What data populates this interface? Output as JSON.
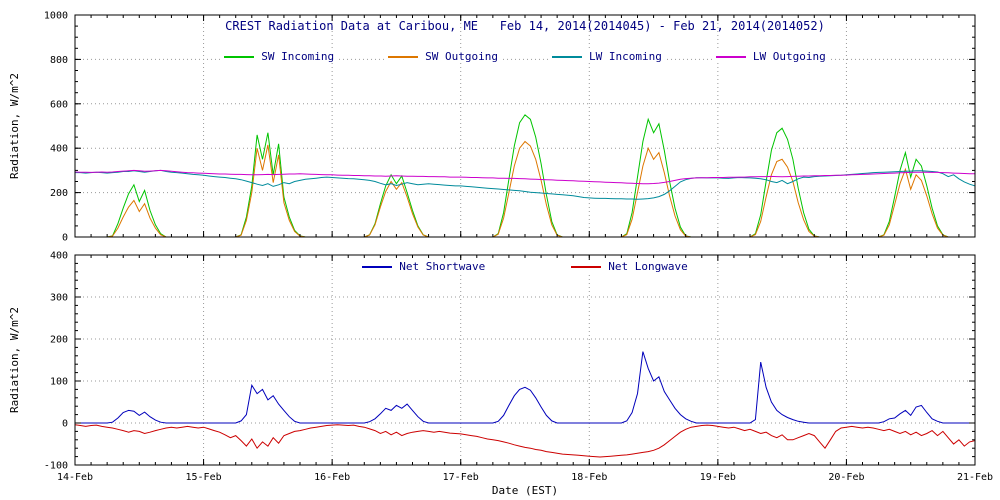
{
  "xlabel": "Date (EST)",
  "chart_data": [
    {
      "type": "line",
      "title": "CREST Radiation Data at Caribou, ME   Feb 14, 2014(2014045) - Feb 21, 2014(2014052)",
      "ylabel": "Radiation, W/m^2",
      "xlabel": "",
      "ylim": [
        0,
        1000
      ],
      "yticks": [
        0,
        200,
        400,
        600,
        800,
        1000
      ],
      "yminor_step": 50,
      "x_unit": "hours since 14-Feb 00:00 EST",
      "xlim_hours": [
        0,
        168
      ],
      "xticks_hours": [
        0,
        24,
        48,
        72,
        96,
        120,
        144,
        168
      ],
      "xtick_labels": [
        "14-Feb",
        "15-Feb",
        "16-Feb",
        "17-Feb",
        "18-Feb",
        "19-Feb",
        "20-Feb",
        "21-Feb"
      ],
      "xminor_hours": 3,
      "show_xtick_labels": false,
      "grid": "dotted",
      "legend_position": "top-inside",
      "series": [
        {
          "name": "SW Incoming",
          "color": "#00c400",
          "x_step_hours": 1,
          "values": [
            0,
            0,
            0,
            0,
            0,
            0,
            0,
            5,
            60,
            130,
            195,
            235,
            160,
            210,
            120,
            55,
            15,
            0,
            0,
            0,
            0,
            0,
            0,
            0,
            0,
            0,
            0,
            0,
            0,
            0,
            0,
            10,
            90,
            230,
            460,
            350,
            470,
            280,
            420,
            180,
            90,
            30,
            5,
            0,
            0,
            0,
            0,
            0,
            0,
            0,
            0,
            0,
            0,
            0,
            0,
            10,
            60,
            150,
            230,
            280,
            240,
            275,
            200,
            120,
            50,
            10,
            0,
            0,
            0,
            0,
            0,
            0,
            0,
            0,
            0,
            0,
            0,
            0,
            0,
            15,
            110,
            260,
            410,
            515,
            550,
            530,
            450,
            330,
            190,
            70,
            10,
            0,
            0,
            0,
            0,
            0,
            0,
            0,
            0,
            0,
            0,
            0,
            0,
            15,
            110,
            270,
            430,
            530,
            470,
            510,
            390,
            250,
            130,
            45,
            5,
            0,
            0,
            0,
            0,
            0,
            0,
            0,
            0,
            0,
            0,
            0,
            0,
            15,
            100,
            250,
            390,
            470,
            490,
            440,
            350,
            220,
            110,
            35,
            5,
            0,
            0,
            0,
            0,
            0,
            0,
            0,
            0,
            0,
            0,
            0,
            0,
            10,
            70,
            180,
            300,
            380,
            270,
            350,
            320,
            230,
            130,
            50,
            10,
            0,
            0,
            0,
            0,
            0,
            0
          ]
        },
        {
          "name": "SW Outgoing",
          "color": "#dd7700",
          "x_step_hours": 1,
          "values": [
            0,
            0,
            0,
            0,
            0,
            0,
            0,
            4,
            40,
            90,
            135,
            165,
            115,
            150,
            85,
            40,
            10,
            0,
            0,
            0,
            0,
            0,
            0,
            0,
            0,
            0,
            0,
            0,
            0,
            0,
            0,
            8,
            75,
            200,
            400,
            300,
            415,
            245,
            370,
            155,
            75,
            25,
            4,
            0,
            0,
            0,
            0,
            0,
            0,
            0,
            0,
            0,
            0,
            0,
            0,
            9,
            55,
            135,
            205,
            250,
            215,
            245,
            180,
            105,
            45,
            9,
            0,
            0,
            0,
            0,
            0,
            0,
            0,
            0,
            0,
            0,
            0,
            0,
            0,
            12,
            85,
            200,
            320,
            400,
            430,
            410,
            350,
            255,
            145,
            55,
            8,
            0,
            0,
            0,
            0,
            0,
            0,
            0,
            0,
            0,
            0,
            0,
            0,
            11,
            80,
            200,
            320,
            400,
            350,
            380,
            290,
            185,
            95,
            33,
            4,
            0,
            0,
            0,
            0,
            0,
            0,
            0,
            0,
            0,
            0,
            0,
            0,
            11,
            70,
            180,
            280,
            340,
            350,
            315,
            250,
            155,
            78,
            25,
            4,
            0,
            0,
            0,
            0,
            0,
            0,
            0,
            0,
            0,
            0,
            0,
            0,
            8,
            55,
            145,
            240,
            305,
            215,
            280,
            255,
            185,
            105,
            40,
            8,
            0,
            0,
            0,
            0,
            0,
            0
          ]
        },
        {
          "name": "LW Incoming",
          "color": "#008b9b",
          "x_step_hours": 1,
          "values": [
            290,
            290,
            288,
            290,
            292,
            290,
            288,
            290,
            292,
            295,
            295,
            298,
            295,
            292,
            295,
            298,
            300,
            295,
            292,
            290,
            288,
            285,
            282,
            280,
            278,
            275,
            272,
            270,
            268,
            265,
            262,
            258,
            252,
            245,
            238,
            232,
            240,
            228,
            235,
            245,
            240,
            250,
            255,
            260,
            262,
            265,
            268,
            270,
            268,
            266,
            265,
            263,
            262,
            260,
            258,
            255,
            250,
            242,
            235,
            240,
            232,
            238,
            245,
            240,
            235,
            238,
            240,
            238,
            236,
            234,
            232,
            230,
            230,
            228,
            226,
            224,
            222,
            220,
            218,
            216,
            214,
            212,
            210,
            208,
            205,
            202,
            200,
            198,
            196,
            194,
            192,
            190,
            188,
            186,
            182,
            178,
            176,
            175,
            174,
            174,
            173,
            172,
            172,
            171,
            171,
            170,
            171,
            173,
            176,
            182,
            192,
            208,
            228,
            248,
            258,
            264,
            267,
            267,
            266,
            266,
            266,
            265,
            264,
            266,
            268,
            267,
            266,
            265,
            262,
            258,
            250,
            245,
            255,
            240,
            250,
            262,
            270,
            268,
            272,
            274,
            275,
            276,
            277,
            278,
            280,
            282,
            284,
            286,
            288,
            290,
            291,
            292,
            293,
            294,
            295,
            296,
            297,
            298,
            298,
            297,
            295,
            293,
            285,
            272,
            280,
            262,
            248,
            238,
            230
          ]
        },
        {
          "name": "LW Outgoing",
          "color": "#cc00cc",
          "x_step_hours": 1,
          "values": [
            293,
            292,
            292,
            291,
            292,
            293,
            292,
            293,
            295,
            297,
            298,
            300,
            298,
            296,
            297,
            298,
            300,
            298,
            296,
            294,
            292,
            290,
            289,
            288,
            287,
            286,
            285,
            284,
            284,
            283,
            282,
            282,
            281,
            280,
            280,
            281,
            282,
            281,
            282,
            283,
            284,
            284,
            285,
            284,
            283,
            282,
            281,
            280,
            280,
            279,
            278,
            278,
            277,
            277,
            276,
            276,
            275,
            275,
            274,
            275,
            276,
            275,
            274,
            274,
            273,
            273,
            272,
            272,
            271,
            271,
            270,
            270,
            270,
            269,
            268,
            268,
            267,
            266,
            266,
            265,
            265,
            264,
            264,
            263,
            262,
            261,
            260,
            259,
            258,
            257,
            256,
            255,
            254,
            253,
            252,
            251,
            250,
            249,
            248,
            247,
            246,
            245,
            244,
            243,
            242,
            241,
            240,
            240,
            241,
            243,
            246,
            250,
            255,
            260,
            263,
            265,
            266,
            267,
            267,
            268,
            268,
            268,
            269,
            269,
            270,
            270,
            271,
            271,
            272,
            272,
            273,
            272,
            271,
            272,
            273,
            274,
            275,
            275,
            276,
            276,
            277,
            277,
            278,
            278,
            279,
            280,
            281,
            282,
            283,
            284,
            285,
            286,
            287,
            288,
            289,
            290,
            291,
            292,
            292,
            292,
            291,
            291,
            290,
            289,
            288,
            287,
            286,
            285,
            285
          ]
        }
      ]
    },
    {
      "type": "line",
      "title": "",
      "ylabel": "Radiation, W/m^2",
      "xlabel": "Date (EST)",
      "ylim": [
        -100,
        400
      ],
      "yticks": [
        -100,
        0,
        100,
        200,
        300,
        400
      ],
      "yminor_step": 20,
      "x_unit": "hours since 14-Feb 00:00 EST",
      "xlim_hours": [
        0,
        168
      ],
      "xticks_hours": [
        0,
        24,
        48,
        72,
        96,
        120,
        144,
        168
      ],
      "xtick_labels": [
        "14-Feb",
        "15-Feb",
        "16-Feb",
        "17-Feb",
        "18-Feb",
        "19-Feb",
        "20-Feb",
        "21-Feb"
      ],
      "xminor_hours": 3,
      "show_xtick_labels": true,
      "grid": "dotted",
      "legend_position": "top-inside",
      "series": [
        {
          "name": "Net Shortwave",
          "color": "#0000bb",
          "x_step_hours": 1,
          "values": [
            0,
            0,
            0,
            0,
            0,
            0,
            0,
            2,
            12,
            25,
            30,
            28,
            18,
            26,
            15,
            7,
            2,
            0,
            0,
            0,
            0,
            0,
            0,
            0,
            0,
            0,
            0,
            0,
            0,
            0,
            0,
            5,
            20,
            90,
            70,
            80,
            55,
            65,
            45,
            30,
            15,
            4,
            0,
            0,
            0,
            0,
            0,
            0,
            0,
            0,
            0,
            0,
            0,
            0,
            0,
            3,
            10,
            22,
            35,
            30,
            42,
            35,
            45,
            30,
            15,
            4,
            0,
            0,
            0,
            0,
            0,
            0,
            0,
            0,
            0,
            0,
            0,
            0,
            0,
            4,
            18,
            42,
            65,
            80,
            85,
            78,
            60,
            38,
            18,
            5,
            0,
            0,
            0,
            0,
            0,
            0,
            0,
            0,
            0,
            0,
            0,
            0,
            0,
            5,
            25,
            70,
            170,
            130,
            100,
            110,
            75,
            55,
            35,
            20,
            10,
            4,
            0,
            0,
            0,
            0,
            0,
            0,
            0,
            0,
            0,
            0,
            0,
            8,
            145,
            85,
            50,
            30,
            20,
            13,
            8,
            4,
            2,
            0,
            0,
            0,
            0,
            0,
            0,
            0,
            0,
            0,
            0,
            0,
            0,
            0,
            0,
            3,
            10,
            12,
            22,
            30,
            18,
            38,
            42,
            25,
            10,
            4,
            0,
            0,
            0,
            0,
            0,
            0,
            0
          ]
        },
        {
          "name": "Net Longwave",
          "color": "#cc0000",
          "x_step_hours": 1,
          "values": [
            -4,
            -6,
            -8,
            -6,
            -5,
            -8,
            -10,
            -12,
            -15,
            -18,
            -22,
            -18,
            -20,
            -25,
            -22,
            -18,
            -15,
            -12,
            -10,
            -12,
            -10,
            -8,
            -10,
            -12,
            -10,
            -14,
            -18,
            -22,
            -28,
            -35,
            -30,
            -42,
            -55,
            -38,
            -60,
            -45,
            -55,
            -35,
            -48,
            -30,
            -25,
            -20,
            -18,
            -15,
            -12,
            -10,
            -8,
            -6,
            -5,
            -4,
            -5,
            -6,
            -5,
            -8,
            -10,
            -14,
            -18,
            -25,
            -20,
            -28,
            -22,
            -30,
            -25,
            -22,
            -20,
            -18,
            -20,
            -22,
            -20,
            -22,
            -24,
            -25,
            -26,
            -28,
            -30,
            -32,
            -35,
            -38,
            -40,
            -42,
            -45,
            -48,
            -52,
            -55,
            -58,
            -60,
            -63,
            -65,
            -68,
            -70,
            -72,
            -74,
            -75,
            -76,
            -77,
            -78,
            -79,
            -80,
            -81,
            -80,
            -79,
            -78,
            -77,
            -76,
            -74,
            -72,
            -70,
            -68,
            -65,
            -60,
            -52,
            -42,
            -32,
            -22,
            -15,
            -10,
            -8,
            -6,
            -5,
            -6,
            -8,
            -10,
            -12,
            -10,
            -14,
            -18,
            -15,
            -20,
            -25,
            -22,
            -30,
            -35,
            -28,
            -40,
            -40,
            -35,
            -30,
            -25,
            -30,
            -45,
            -60,
            -40,
            -20,
            -12,
            -10,
            -8,
            -10,
            -12,
            -10,
            -12,
            -15,
            -18,
            -15,
            -20,
            -25,
            -20,
            -28,
            -22,
            -30,
            -25,
            -18,
            -30,
            -20,
            -35,
            -50,
            -40,
            -55,
            -45,
            -42
          ]
        }
      ]
    }
  ]
}
